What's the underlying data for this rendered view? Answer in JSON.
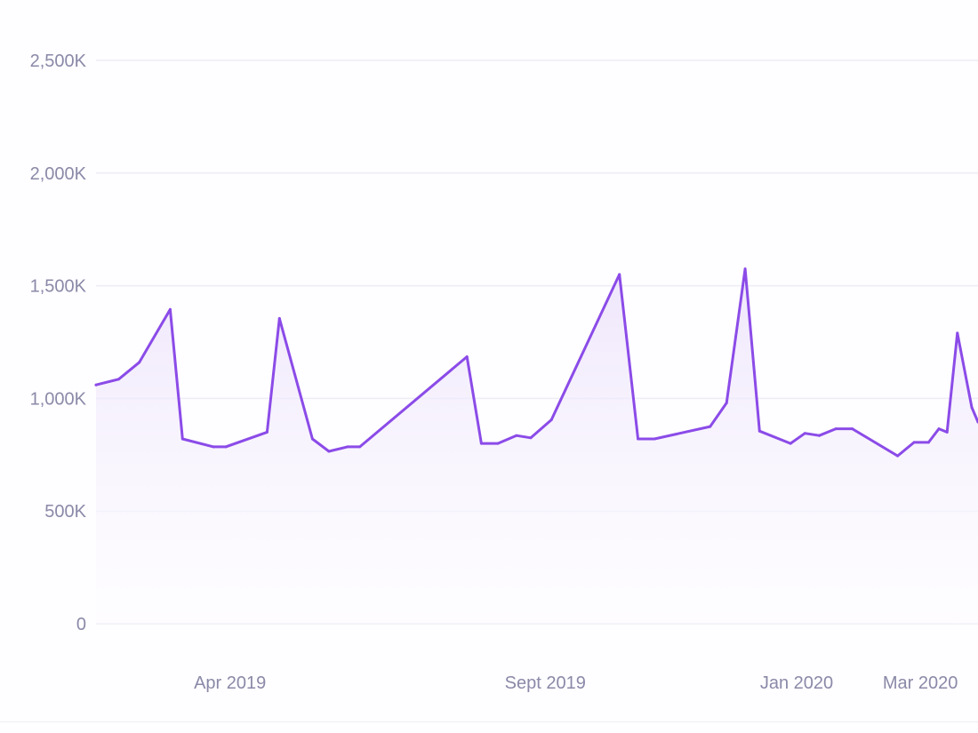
{
  "chart_data": {
    "type": "area",
    "title": "",
    "xlabel": "",
    "ylabel": "",
    "ylim": [
      0,
      2500000
    ],
    "grid": true,
    "legend": "none",
    "colors": {
      "line": "#8b4be8",
      "fill_top": "#ece2fb",
      "fill_bottom": "#fdfcff",
      "grid": "#eeedf6",
      "tick_text": "#8a89a8"
    },
    "yticks": [
      {
        "value": 0,
        "label": "0"
      },
      {
        "value": 500000,
        "label": "500K"
      },
      {
        "value": 1000000,
        "label": "1,000K"
      },
      {
        "value": 1500000,
        "label": "1,500K"
      },
      {
        "value": 2000000,
        "label": "2,000K"
      },
      {
        "value": 2500000,
        "label": "2,500K"
      }
    ],
    "xrange": [
      "2019-01-26",
      "2020-03-29"
    ],
    "xticks": [
      {
        "date": "2019-04-01",
        "label": "Apr 2019"
      },
      {
        "date": "2019-09-01",
        "label": "Sept 2019"
      },
      {
        "date": "2020-01-01",
        "label": "Jan 2020"
      },
      {
        "date": "2020-03-01",
        "label": "Mar 2020"
      }
    ],
    "series": [
      {
        "points": [
          {
            "x": "2019-01-26",
            "y": 1060000
          },
          {
            "x": "2019-02-06",
            "y": 1085000
          },
          {
            "x": "2019-02-16",
            "y": 1160000
          },
          {
            "x": "2019-03-03",
            "y": 1395000
          },
          {
            "x": "2019-03-09",
            "y": 820000
          },
          {
            "x": "2019-03-24",
            "y": 785000
          },
          {
            "x": "2019-03-30",
            "y": 785000
          },
          {
            "x": "2019-04-19",
            "y": 850000
          },
          {
            "x": "2019-04-25",
            "y": 1355000
          },
          {
            "x": "2019-05-11",
            "y": 820000
          },
          {
            "x": "2019-05-19",
            "y": 765000
          },
          {
            "x": "2019-05-28",
            "y": 785000
          },
          {
            "x": "2019-06-03",
            "y": 785000
          },
          {
            "x": "2019-07-25",
            "y": 1185000
          },
          {
            "x": "2019-08-01",
            "y": 800000
          },
          {
            "x": "2019-08-09",
            "y": 800000
          },
          {
            "x": "2019-08-18",
            "y": 835000
          },
          {
            "x": "2019-08-25",
            "y": 825000
          },
          {
            "x": "2019-09-04",
            "y": 905000
          },
          {
            "x": "2019-10-07",
            "y": 1550000
          },
          {
            "x": "2019-10-16",
            "y": 820000
          },
          {
            "x": "2019-10-24",
            "y": 820000
          },
          {
            "x": "2019-11-20",
            "y": 875000
          },
          {
            "x": "2019-11-28",
            "y": 980000
          },
          {
            "x": "2019-12-07",
            "y": 1575000
          },
          {
            "x": "2019-12-14",
            "y": 855000
          },
          {
            "x": "2019-12-29",
            "y": 800000
          },
          {
            "x": "2020-01-05",
            "y": 845000
          },
          {
            "x": "2020-01-12",
            "y": 835000
          },
          {
            "x": "2020-01-20",
            "y": 865000
          },
          {
            "x": "2020-01-28",
            "y": 865000
          },
          {
            "x": "2020-02-19",
            "y": 745000
          },
          {
            "x": "2020-02-27",
            "y": 805000
          },
          {
            "x": "2020-03-05",
            "y": 805000
          },
          {
            "x": "2020-03-10",
            "y": 865000
          },
          {
            "x": "2020-03-14",
            "y": 850000
          },
          {
            "x": "2020-03-19",
            "y": 1290000
          },
          {
            "x": "2020-03-26",
            "y": 960000
          },
          {
            "x": "2020-03-29",
            "y": 895000
          }
        ]
      }
    ]
  }
}
